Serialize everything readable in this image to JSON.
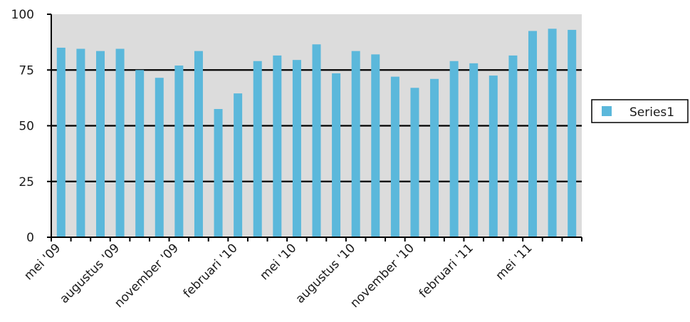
{
  "chart_data": {
    "type": "bar",
    "title": "",
    "xlabel": "",
    "ylabel": "",
    "ylim": [
      0,
      100
    ],
    "yticks": [
      0,
      25,
      50,
      75,
      100
    ],
    "grid": true,
    "legend_position": "right",
    "x_tick_labels": [
      "mei '09",
      "augustus '09",
      "november '09",
      "februari '10",
      "mei '10",
      "augustus '10",
      "november '10",
      "februari '11",
      "mei '11"
    ],
    "series": [
      {
        "name": "Series1",
        "color": "#5bb8db",
        "values": [
          85,
          84.5,
          83.5,
          84.5,
          75,
          71.5,
          77,
          83.5,
          57.5,
          64.5,
          79,
          81.5,
          79.5,
          86.5,
          73.5,
          83.5,
          82,
          72,
          67,
          71,
          79,
          78,
          72.5,
          81.5,
          92.5,
          93.5,
          93
        ]
      }
    ],
    "plot_background": "#dcdcdc",
    "axis_color": "#000000"
  }
}
